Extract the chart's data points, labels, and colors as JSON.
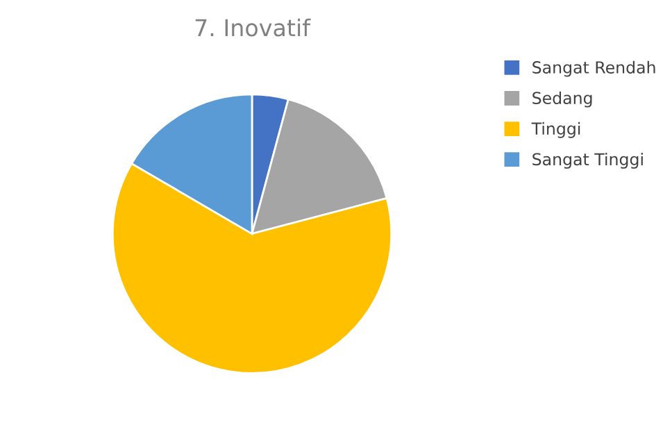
{
  "chart_data": {
    "type": "pie",
    "title": "7. Inovatif",
    "categories": [
      "Sangat Rendah",
      "Sedang",
      "Tinggi",
      "Sangat Tinggi"
    ],
    "values": [
      4.2,
      16.7,
      62.5,
      16.6
    ],
    "colors": [
      "#4472c4",
      "#a5a5a5",
      "#ffc000",
      "#5b9bd5"
    ],
    "legend": "right"
  }
}
